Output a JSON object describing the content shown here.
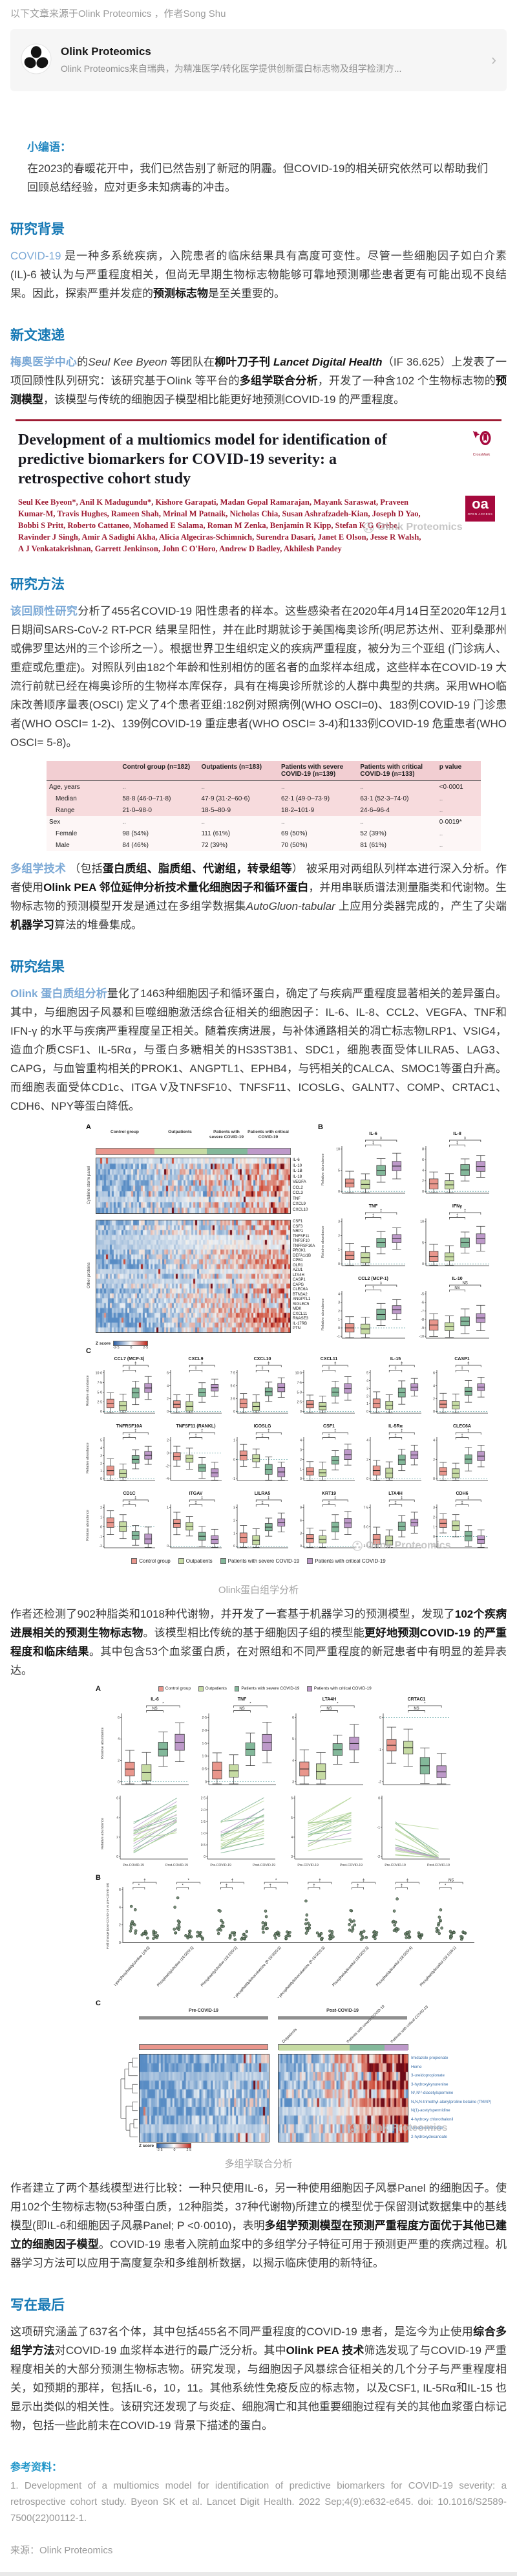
{
  "note": "以下文章来源于Olink Proteomics ，作者Song Shu",
  "card": {
    "title": "Olink Proteomics",
    "desc": "Olink Proteomics来自瑞典，为精准医学/转化医学提供创新蛋白标志物及组学检测方...",
    "chevron": "›"
  },
  "editor": {
    "label": "小编语：",
    "text": "在2023的春暖花开中，我们已然告别了新冠的阴霾。但COVID-19的相关研究依然可以帮助我们回顾总结经验，应对更多未知病毒的冲击。"
  },
  "headings": {
    "background": "研究背景",
    "news": "新文速递",
    "methods": "研究方法",
    "results": "研究结果",
    "final": "写在最后"
  },
  "paras": {
    "p1": [
      {
        "t": "COVID-19 ",
        "s": "hl"
      },
      {
        "t": "是一种多系统疾病，入院患者的临床结果具有高度可变性。尽管一些细胞因子如白介素(IL)-6 被认为与严重程度相关，但尚无早期生物标志物能够可靠地预测哪些患者更有可能出现不良结果。因此，探索严重并发症的",
        "s": "n"
      },
      {
        "t": "预测标志物",
        "s": "b"
      },
      {
        "t": "是至关重要的。",
        "s": "n"
      }
    ],
    "p2": [
      {
        "t": "梅奥医学中心",
        "s": "hlb"
      },
      {
        "t": "的",
        "s": "n"
      },
      {
        "t": "Seul Kee Byeon",
        "s": "i"
      },
      {
        "t": " 等团队在",
        "s": "n"
      },
      {
        "t": "柳叶刀子刊 ",
        "s": "b"
      },
      {
        "t": "Lancet Digital Health",
        "s": "bi"
      },
      {
        "t": "（IF 36.625）上发表了一项回顾性队列研究：该研究基于Olink 等平台的",
        "s": "n"
      },
      {
        "t": "多组学联合分析",
        "s": "b"
      },
      {
        "t": "，开发了一种含102 个生物标志物的",
        "s": "n"
      },
      {
        "t": "预测模型",
        "s": "b"
      },
      {
        "t": "，该模型与传统的细胞因子模型相比能更好地预测COVID-19 的严重程度。",
        "s": "n"
      }
    ],
    "p3": [
      {
        "t": "该回顾性研究",
        "s": "hlb"
      },
      {
        "t": "分析了455名COVID-19 阳性患者的样本。这些感染者在2020年4月14日至2020年12月1日期间SARS-CoV-2 RT-PCR 结果呈阳性，并在此时期就诊于美国梅奥诊所(明尼苏达州、亚利桑那州或佛罗里达州的三个诊所之一）。根据世界卫生组织定义的疾病严重程度，被分为三个亚组 (门诊病人、重症或危重症)。对照队列由182个年龄和性别相仿的匿名者的血浆样本组成，这些样本在COVID-19 大流行前就已经在梅奥诊所的生物样本库保存，具有在梅奥诊所就诊的人群中典型的共病。采用WHO临床改善顺序量表(OSCI) 定义了4个患者亚组:182例对照病例(WHO OSCI=0)、183例COVID-19 门诊患者(WHO OSCI= 1-2)、139例COVID-19 重症患者(WHO OSCI= 3-4)和133例COVID-19 危重患者(WHO OSCI= 5-8)。",
        "s": "n"
      }
    ],
    "p4": [
      {
        "t": "多组学技术",
        "s": "hlb"
      },
      {
        "t": " （包括",
        "s": "n"
      },
      {
        "t": "蛋白质组、脂质组、代谢组，转录组等",
        "s": "b"
      },
      {
        "t": "） 被采用对两组队列样本进行深入分析。作者使用",
        "s": "n"
      },
      {
        "t": "Olink PEA 邻位延伸分析技术量化细胞因子和循环蛋白",
        "s": "b"
      },
      {
        "t": "，并用串联质谱法测量脂类和代谢物。生物标志物的预测模型开发是通过在多组学数据集",
        "s": "n"
      },
      {
        "t": "AutoGluon-tabular",
        "s": "i"
      },
      {
        "t": " 上应用分类器完成的，产生了尖端",
        "s": "n"
      },
      {
        "t": "机器学习",
        "s": "b"
      },
      {
        "t": "算法的堆叠集成。",
        "s": "n"
      }
    ],
    "p5": [
      {
        "t": "Olink 蛋白质组分析",
        "s": "hlb"
      },
      {
        "t": "量化了1463种细胞因子和循环蛋白，确定了与疾病严重程度显著相关的差异蛋白。其中，与细胞因子风暴和巨噬细胞激活综合征相关的细胞因子：IL-6、IL-8、CCL2、VEGFA、TNF和IFN-γ 的水平与疾病严重程度呈正相关。随着疾病进展，与补体通路相关的凋亡标志物LRP1、VSIG4，造血介质CSF1、IL-5Rα，与蛋白多糖相关的HS3ST3B1、SDC1，细胞表面受体LILRA5、LAG3、CAPG，与血管重构相关的PROK1、ANGPTL1、EPHB4，与钙相关的CALCA、SMOC1等蛋白升高。而细胞表面受体CD1c、ITGA V及TNFSF10、TNFSF11、ICOSLG、GALNT7、COMP、CRTAC1、CDH6、NPY等蛋白降低。",
        "s": "n"
      }
    ],
    "p6": [
      {
        "t": "作者还检测了902种脂类和1018种代谢物，并开发了一套基于机器学习的预测模型，发现了",
        "s": "n"
      },
      {
        "t": "102个疾病进展相关的预测生物标志物",
        "s": "b"
      },
      {
        "t": "。该模型相比传统的基于细胞因子组的模型能",
        "s": "n"
      },
      {
        "t": "更好地预测COVID-19 的严重程度和临床结果",
        "s": "b"
      },
      {
        "t": "。其中包含53个血浆蛋白质，在对照组和不同严重程度的新冠患者中有明显的差异表达。",
        "s": "n"
      }
    ],
    "p7": [
      {
        "t": "作者建立了两个基线模型进行比较：一种只使用IL-6，另一种使用细胞因子风暴Panel 的细胞因子。使用102个生物标志物(53种蛋白质，12种脂类，37种代谢物)所建立的模型优于保留测试数据集中的基线模型(即IL-6和细胞因子风暴Panel; P <0·0010)，表明",
        "s": "n"
      },
      {
        "t": "多组学预测模型在预测严重程度方面优于其他已建立的细胞因子模型",
        "s": "b"
      },
      {
        "t": "。COVID-19 患者入院前血浆中的多组学分子特征可用于预测更严重的疾病过程。机器学习方法可以应用于高度复杂和多维剖析数据，以揭示临床使用的新特征。",
        "s": "n"
      }
    ],
    "p8": [
      {
        "t": "这项研究涵盖了637名个体，其中包括455名不同严重程度的COVID-19 患者，是迄今为止使用",
        "s": "n"
      },
      {
        "t": "综合多组学方法",
        "s": "b"
      },
      {
        "t": "对COVID-19 血浆样本进行的最广泛分析。其中",
        "s": "n"
      },
      {
        "t": "Olink PEA 技术",
        "s": "b"
      },
      {
        "t": "筛选发现了与COVID-19 严重程度相关的大部分预测生物标志物。研究发现，与细胞因子风暴综合征相关的几个分子与严重程度相关，如预期的那样，包括IL-6，10，11。其他系统性免疫反应的标志物，以及CSF1, IL-5Rα和IL-15 也显示出类似的相关性。该研究还发现了与炎症、细胞凋亡和其他重要细胞过程有关的其他血浆蛋白标记物，包括一些此前未在COVID-19 背景下描述的蛋白。",
        "s": "n"
      }
    ]
  },
  "paper": {
    "title": "Development of a multiomics model for identification of predictive biomarkers for COVID-19 severity: a retrospective cohort study",
    "authors": "Seul Kee Byeon*, Anil K Madugundu*, Kishore Garapati, Madan Gopal Ramarajan, Mayank Saraswat, Praveen Kumar-M, Travis Hughes, Rameen Shah, Mrinal M Patnaik, Nicholas Chia, Susan Ashrafzadeh-Kian, Joseph D Yao, Bobbi S Pritt, Roberto Cattaneo, Mohamed E Salama, Roman M Zenka, Benjamin R Kipp, Stefan K G Grebe, Ravinder J Singh, Amir A Sadighi Akha, Alicia Algeciras-Schimnich, Surendra Dasari, Janet E Olson, Jesse R Walsh, A J Venkatakrishnan, Garrett Jenkinson, John C O'Horo, Andrew D Badley, Akhilesh Pandey",
    "oa_label": "oa",
    "oa_sub": "OPEN ACCESS",
    "crossmark": "CrossMark",
    "watermark": "Olink Proteomics"
  },
  "table": {
    "columns": [
      "",
      "Control group (n=182)",
      "Outpatients (n=183)",
      "Patients with severe COVID-19 (n=139)",
      "Patients with critical COVID-19 (n=133)",
      "p value"
    ],
    "rows": [
      {
        "label": "Age, years",
        "indent": false,
        "band": "pink",
        "cells": [
          "..",
          "..",
          "..",
          "..",
          "<0·0001"
        ]
      },
      {
        "label": "Median",
        "indent": true,
        "band": "pink",
        "cells": [
          "58·8 (46·0–71·8)",
          "47·9 (31·2–60·6)",
          "62·1 (49·0–73·9)",
          "63·1 (52·3–74·0)",
          ".."
        ]
      },
      {
        "label": "Range",
        "indent": true,
        "band": "pink",
        "cells": [
          "21·0–98·0",
          "18·5–80·9",
          "18·2–101·9",
          "24·6–96·4",
          ".."
        ]
      },
      {
        "label": "Sex",
        "indent": false,
        "band": "white",
        "cells": [
          "..",
          "..",
          "..",
          "..",
          "0·0019*"
        ]
      },
      {
        "label": "Female",
        "indent": true,
        "band": "white",
        "cells": [
          "98 (54%)",
          "111 (61%)",
          "69 (50%)",
          "52 (39%)",
          ".."
        ]
      },
      {
        "label": "Male",
        "indent": true,
        "band": "white",
        "cells": [
          "84 (46%)",
          "72 (39%)",
          "70 (50%)",
          "81 (61%)",
          ".."
        ]
      }
    ]
  },
  "fig1": {
    "caption": "Olink蛋白组学分析",
    "watermark": "Olink Proteomics",
    "ylabel": "Relative abundance",
    "groups": [
      {
        "label": "Control group",
        "color": "#e9968c"
      },
      {
        "label": "Outpatients",
        "color": "#c6dba3"
      },
      {
        "label": "Patients with severe COVID-19",
        "color": "#83b89a"
      },
      {
        "label": "Patients with critical COVID-19",
        "color": "#bd99c9"
      }
    ],
    "heatmap1": {
      "side_label": "Cytokine storm panel",
      "rows": [
        "IL-6",
        "IL-10",
        "IL-1B",
        "IL-18",
        "VEGFA",
        "CCL2",
        "CCL3",
        "TNF",
        "CXCL9",
        "CXCL10"
      ]
    },
    "heatmap2": {
      "side_label": "Other proteins",
      "rows": [
        "CSF1",
        "CSF3",
        "NRP1",
        "TNFSF11",
        "TNFSF10",
        "TNFRSF10A",
        "PROK1",
        "DEFA1/1B",
        "CPB1",
        "OLR1",
        "AZU1",
        "LTA4H",
        "CASP1",
        "CAPG",
        "CLEC6A",
        "BTN3A2",
        "ANGPTL1",
        "SIGLEC5",
        "MDK",
        "CXCL11",
        "RNASE3",
        "IL-17RB",
        "PTN"
      ]
    },
    "zscore": {
      "label": "Z score",
      "ticks": [
        "-2·5",
        "0",
        "2·5"
      ]
    },
    "panel_b_plots": [
      {
        "title": "IL-6",
        "yticks": [
          "0",
          "5",
          "10"
        ],
        "pattern": "up",
        "sig": [
          "‡",
          "‡"
        ]
      },
      {
        "title": "IL-8",
        "yticks": [
          "0",
          "2",
          "4",
          "6",
          "8"
        ],
        "pattern": "up",
        "sig": [
          "‡",
          "‡"
        ]
      },
      {
        "title": "TNF",
        "yticks": [
          "0",
          "1",
          "2",
          "3"
        ],
        "pattern": "up",
        "sig": [
          "‡",
          "‡"
        ]
      },
      {
        "title": "IFNγ",
        "yticks": [
          "0",
          "5",
          "10"
        ],
        "pattern": "up",
        "sig": [
          "‡",
          "‡"
        ]
      },
      {
        "title": "CCL2 (MCP-1)",
        "yticks": [
          "-1",
          "0",
          "1",
          "2",
          "3",
          "4"
        ],
        "pattern": "up",
        "sig": [
          "‡",
          "†"
        ]
      },
      {
        "title": "IL-10",
        "yticks": [
          "-10",
          "-9",
          "-8",
          "-7",
          "-6",
          "-5"
        ],
        "pattern": "upNS",
        "sig": [
          "NS",
          "NS"
        ]
      }
    ],
    "panel_c_plots": [
      {
        "title": "CCL7 (MCP-3)",
        "yticks": [
          "0",
          "2·5",
          "5·0",
          "7·5",
          "10·0"
        ],
        "pattern": "up",
        "sig": [
          "‡",
          "‡"
        ]
      },
      {
        "title": "CXCL9",
        "yticks": [
          "0",
          "2",
          "4",
          "6"
        ],
        "pattern": "up",
        "sig": [
          "‡",
          "‡"
        ]
      },
      {
        "title": "CXCL10",
        "yticks": [
          "0",
          "2·5",
          "5·0",
          "7·5"
        ],
        "pattern": "up",
        "sig": [
          "‡",
          "‡"
        ]
      },
      {
        "title": "CXCL11",
        "yticks": [
          "0",
          "2·5",
          "5·0",
          "7·5",
          "10·0"
        ],
        "pattern": "up",
        "sig": [
          "‡",
          "‡"
        ]
      },
      {
        "title": "IL-15",
        "yticks": [
          "0",
          "1",
          "2",
          "3",
          "4",
          "5"
        ],
        "pattern": "up",
        "sig": [
          "‡",
          "‡"
        ]
      },
      {
        "title": "CASP1",
        "yticks": [
          "0",
          "2",
          "4",
          "6"
        ],
        "pattern": "up",
        "sig": [
          "‡",
          "‡"
        ]
      },
      {
        "title": "TNFRSF10A",
        "yticks": [
          "0",
          "1",
          "2",
          "3",
          "4",
          "5"
        ],
        "pattern": "up",
        "sig": [
          "‡",
          "‡"
        ]
      },
      {
        "title": "TNFSF11 (RANKL)",
        "yticks": [
          "-4",
          "-2",
          "0",
          "2"
        ],
        "pattern": "down",
        "sig": [
          "‡",
          "‡"
        ]
      },
      {
        "title": "ICOSLG",
        "yticks": [
          "-1",
          "0",
          "1"
        ],
        "pattern": "down",
        "sig": [
          "‡",
          "‡"
        ]
      },
      {
        "title": "CSF1",
        "yticks": [
          "0",
          "1",
          "2",
          "3",
          "4"
        ],
        "pattern": "up",
        "sig": [
          "‡",
          "‡"
        ]
      },
      {
        "title": "IL-5Rα",
        "yticks": [
          "0",
          "2",
          "4"
        ],
        "pattern": "up",
        "sig": [
          "‡",
          "‡"
        ]
      },
      {
        "title": "CLEC6A",
        "yticks": [
          "0",
          "2",
          "4"
        ],
        "pattern": "up",
        "sig": [
          "‡",
          "‡"
        ]
      },
      {
        "title": "CD1C",
        "yticks": [
          "-2",
          "-1",
          "0",
          "1",
          "2"
        ],
        "pattern": "down",
        "sig": [
          "‡",
          "‡"
        ]
      },
      {
        "title": "ITGAV",
        "yticks": [
          "0",
          "1"
        ],
        "pattern": "down",
        "sig": [
          "‡",
          "‡"
        ]
      },
      {
        "title": "LILRA5",
        "yticks": [
          "0",
          "1",
          "2",
          "3"
        ],
        "pattern": "up",
        "sig": [
          "‡",
          "‡"
        ]
      },
      {
        "title": "KRT19",
        "yticks": [
          "0",
          "3",
          "6",
          "9"
        ],
        "pattern": "up",
        "sig": [
          "‡",
          "‡"
        ]
      },
      {
        "title": "LTA4H",
        "yticks": [
          "2·5",
          "5·0",
          "7·5"
        ],
        "pattern": "up",
        "sig": [
          "‡",
          "‡"
        ]
      },
      {
        "title": "CDH6",
        "yticks": [
          "-1",
          "0",
          "1",
          "2",
          "3"
        ],
        "pattern": "down",
        "sig": [
          "‡",
          "‡"
        ]
      }
    ]
  },
  "fig2": {
    "caption": "多组学联合分析",
    "watermark": "Olink Proteomics",
    "ylabel": "Relative abundance",
    "groups": [
      {
        "label": "Control group",
        "color": "#e9968c"
      },
      {
        "label": "Outpatients",
        "color": "#c6dba3"
      },
      {
        "label": "Patients with severe COVID-19",
        "color": "#83b89a"
      },
      {
        "label": "Patients with critical COVID-19",
        "color": "#bd99c9"
      }
    ],
    "panel_a_plots": [
      {
        "title": "IL-6",
        "yticks": [
          "0",
          "2",
          "4",
          "6"
        ],
        "pattern": "up",
        "sig": [
          "*",
          "NS"
        ],
        "line_trend": 0.35
      },
      {
        "title": "TNF",
        "yticks": [
          "0",
          "0·5",
          "1·0",
          "1·5",
          "2·0",
          "2·5"
        ],
        "pattern": "up",
        "sig": [
          "*",
          "NS"
        ],
        "line_trend": 0.3
      },
      {
        "title": "LTA4H",
        "yticks": [
          "3",
          "4",
          "5",
          "6"
        ],
        "pattern": "up",
        "sig": [
          "*",
          "NS"
        ],
        "line_trend": 0.3
      },
      {
        "title": "CRTAC1",
        "yticks": [
          "-2",
          "-1",
          "0"
        ],
        "pattern": "down",
        "sig": [
          "*",
          "NS"
        ],
        "line_trend": -0.45
      }
    ],
    "line_x_labels": [
      "Pre-COVID-19",
      "Post-COVID-19"
    ],
    "panel_b": {
      "ylabel": "Fold change (post-COVID-19 vs pre-COVID-19)",
      "yticks": [
        "0",
        "2",
        "4",
        "6"
      ],
      "groups": [
        "Lysophosphatidylcholine (18:0)",
        "Phosphatidylcholine (16:0/20:3)",
        "Phosphatidylcholine (18:2/20:3)",
        "Ether phosphatidylethanolamine (P-18:0/20:3)",
        "Ether phosphatidylethanolamine (P-16:0/20:3)",
        "Phosphatidylinositol (18:0/20:3)",
        "Phosphatidylinositol (18:0/20:4)",
        "Phosphatidylinositol (18:1/18:1)"
      ],
      "sig": [
        [
          "†",
          "*"
        ],
        [
          "*",
          "*"
        ],
        [
          "†",
          "‡"
        ],
        [
          "*",
          "†"
        ],
        [
          "†",
          "†"
        ],
        [
          "‡",
          "‡"
        ],
        [
          "‡",
          "‡"
        ],
        [
          "NS",
          "*"
        ]
      ]
    },
    "panel_c": {
      "pre_label": "Pre-COVID-19",
      "post_label": "Post-COVID-19",
      "col_groups": [
        "Outpatients",
        "Patients with severe COVID-19",
        "Patients with critical COVID-19"
      ],
      "rows": [
        "Imidazole propionate",
        "Heme",
        "3-ureidopropionate",
        "3-hydroxykynurenine",
        "N¹,N¹²-diacetylspermine",
        "N,N,N-trimethyl-alanylproline betaine (TMAP)",
        "N(1)-acetylspermidine",
        "4-hydroxy chlorothalonil",
        "Ursodeoxycholate",
        "2-hydroxydecanoate"
      ],
      "zscore": {
        "label": "Z score",
        "ticks": [
          "-2·5",
          "0",
          "2·5"
        ]
      }
    }
  },
  "refs": {
    "heading": "参考资料：",
    "text": "1. Development of a multiomics model for identification of predictive biomarkers for COVID-19 severity: a retrospective cohort study. Byeon SK et al. Lancet Digit Health. 2022 Sep;4(9):e632-e645. doi: 10.1016/S2589-7500(22)00112-1.",
    "source_label": "来源：",
    "source_value": "Olink Proteomics"
  }
}
